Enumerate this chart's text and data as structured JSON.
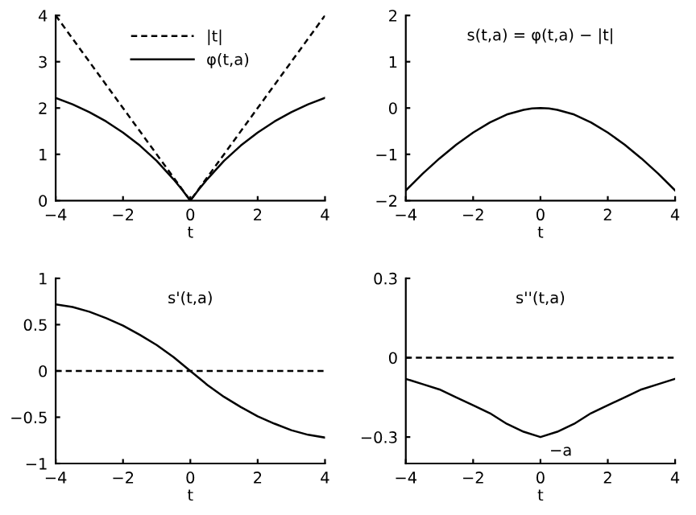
{
  "chart_data": [
    {
      "type": "line",
      "xlabel": "t",
      "xlim": [
        -4,
        4
      ],
      "xticks": [
        -4,
        -2,
        0,
        2,
        4
      ],
      "ylim": [
        0,
        4
      ],
      "yticks": [
        0,
        1,
        2,
        3,
        4
      ],
      "grid": false,
      "legend": "top",
      "marker": "none",
      "series": [
        {
          "name": "|t|",
          "color": "#000000",
          "line_style": "dashed",
          "x": [
            -4,
            0,
            4
          ],
          "values": [
            4,
            0,
            4
          ]
        },
        {
          "name": "φ(t,a)",
          "color": "#000000",
          "line_style": "solid",
          "x": [
            -4,
            -3.5,
            -3,
            -2.5,
            -2,
            -1.5,
            -1,
            -0.5,
            -0.25,
            0,
            0.25,
            0.5,
            1,
            1.5,
            2,
            2.5,
            3,
            3.5,
            4
          ],
          "values": [
            2.22,
            2.08,
            1.91,
            1.71,
            1.47,
            1.19,
            0.86,
            0.46,
            0.24,
            0,
            0.24,
            0.46,
            0.86,
            1.19,
            1.47,
            1.71,
            1.91,
            2.08,
            2.22
          ]
        }
      ]
    },
    {
      "type": "line",
      "title": "s(t,a) = φ(t,a) − |t|",
      "xlabel": "t",
      "xlim": [
        -4,
        4
      ],
      "xticks": [
        -4,
        -2,
        0,
        2,
        4
      ],
      "ylim": [
        -2,
        2
      ],
      "yticks": [
        -2,
        -1,
        0,
        1,
        2
      ],
      "grid": false,
      "marker": "none",
      "series": [
        {
          "color": "#000000",
          "line_style": "solid",
          "x": [
            -4,
            -3.5,
            -3,
            -2.5,
            -2,
            -1.5,
            -1,
            -0.5,
            -0.25,
            0,
            0.25,
            0.5,
            1,
            1.5,
            2,
            2.5,
            3,
            3.5,
            4
          ],
          "values": [
            -1.78,
            -1.42,
            -1.09,
            -0.79,
            -0.53,
            -0.31,
            -0.14,
            -0.04,
            -0.01,
            0,
            -0.01,
            -0.04,
            -0.14,
            -0.31,
            -0.53,
            -0.79,
            -1.09,
            -1.42,
            -1.78
          ]
        }
      ]
    },
    {
      "type": "line",
      "title": "s'(t,a)",
      "xlabel": "t",
      "xlim": [
        -4,
        4
      ],
      "xticks": [
        -4,
        -2,
        0,
        2,
        4
      ],
      "ylim": [
        -1,
        1
      ],
      "yticks": [
        -1,
        -0.5,
        0,
        0.5,
        1
      ],
      "grid": false,
      "marker": "none",
      "ref_lines": [
        {
          "axis": "y",
          "value": 0,
          "color": "#000000",
          "line_style": "dashed"
        }
      ],
      "series": [
        {
          "color": "#000000",
          "line_style": "solid",
          "x": [
            -4,
            -3.5,
            -3,
            -2.5,
            -2,
            -1.5,
            -1,
            -0.5,
            0,
            0.5,
            1,
            1.5,
            2,
            2.5,
            3,
            3.5,
            4
          ],
          "values": [
            0.72,
            0.69,
            0.64,
            0.57,
            0.49,
            0.39,
            0.28,
            0.15,
            0,
            -0.15,
            -0.28,
            -0.39,
            -0.49,
            -0.57,
            -0.64,
            -0.69,
            -0.72
          ]
        }
      ]
    },
    {
      "type": "line",
      "title": "s''(t,a)",
      "xlabel": "t",
      "xlim": [
        -4,
        4
      ],
      "xticks": [
        -4,
        -2,
        0,
        2,
        4
      ],
      "ylim": [
        -0.4,
        0.3
      ],
      "yticks": [
        -0.3,
        0,
        0.3
      ],
      "grid": false,
      "marker": "none",
      "ref_lines": [
        {
          "axis": "y",
          "value": 0,
          "color": "#000000",
          "line_style": "dashed"
        }
      ],
      "annotations": [
        {
          "text": "−a",
          "x": 0,
          "y": -0.3
        }
      ],
      "series": [
        {
          "color": "#000000",
          "line_style": "solid",
          "x": [
            -4,
            -3.5,
            -3,
            -2.5,
            -2,
            -1.5,
            -1,
            -0.5,
            0,
            0.5,
            1,
            1.5,
            2,
            2.5,
            3,
            3.5,
            4
          ],
          "values": [
            -0.08,
            -0.1,
            -0.12,
            -0.15,
            -0.18,
            -0.21,
            -0.25,
            -0.28,
            -0.3,
            -0.28,
            -0.25,
            -0.21,
            -0.18,
            -0.15,
            -0.12,
            -0.1,
            -0.08
          ]
        }
      ]
    }
  ]
}
